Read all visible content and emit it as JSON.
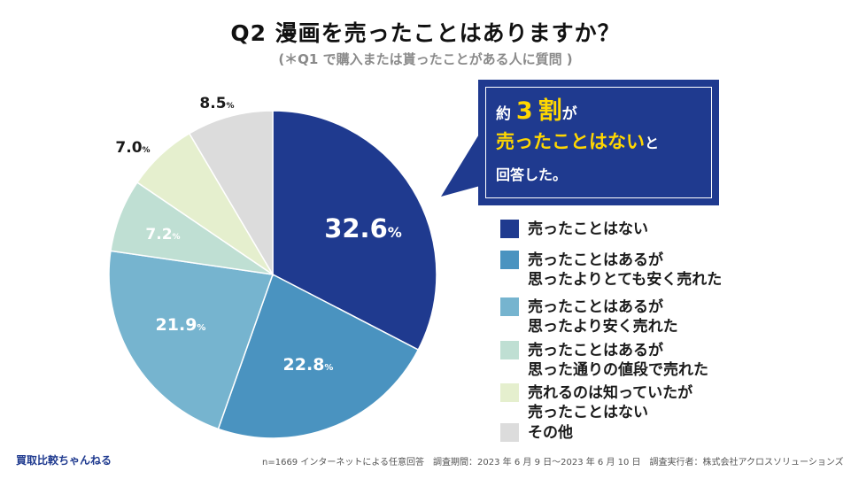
{
  "title": "Q2  漫画を売ったことはありますか？",
  "subtitle": "(＊Q1 で購入または貰ったことがある人に質問 )",
  "callout": {
    "line1_prefix": "約",
    "line1_number": "3",
    "line1_word": "割",
    "line1_suffix": "が",
    "line2_main": "売ったことはない",
    "line2_suffix": "と",
    "line3": "回答した。"
  },
  "chart_data": {
    "type": "pie",
    "title": "Q2  漫画を売ったことはありますか？",
    "unit": "%",
    "slices": [
      {
        "label": "売ったことはない",
        "legend_lines": [
          "売ったことはない"
        ],
        "value": 32.6,
        "value_label": "32.6",
        "color": "#1f3a8f",
        "label_color": "#ffffff"
      },
      {
        "label": "売ったことはあるが思ったよりとても安く売れた",
        "legend_lines": [
          "売ったことはあるが",
          "思ったよりとても安く売れた"
        ],
        "value": 22.8,
        "value_label": "22.8",
        "color": "#4a93c0",
        "label_color": "#ffffff"
      },
      {
        "label": "売ったことはあるが思ったより安く売れた",
        "legend_lines": [
          "売ったことはあるが",
          "思ったより安く売れた"
        ],
        "value": 21.9,
        "value_label": "21.9",
        "color": "#76b4cf",
        "label_color": "#ffffff"
      },
      {
        "label": "売ったことはあるが思った通りの値段で売れた",
        "legend_lines": [
          "売ったことはあるが",
          "思った通りの値段で売れた"
        ],
        "value": 7.2,
        "value_label": "7.2",
        "color": "#bfdfd3",
        "label_color": "#ffffff"
      },
      {
        "label": "売れるのは知っていたが売ったことはない",
        "legend_lines": [
          "売れるのは知っていたが",
          "売ったことはない"
        ],
        "value": 7.0,
        "value_label": "7.0",
        "color": "#e5efce",
        "label_color": "#1a1a1a"
      },
      {
        "label": "その他",
        "legend_lines": [
          "その他"
        ],
        "value": 8.5,
        "value_label": "8.5",
        "color": "#dcdcdc",
        "label_color": "#1a1a1a"
      }
    ]
  },
  "brand": "買取比較ちゃんねる",
  "footnote": "n=1669 インターネットによる任意回答　調査期間：2023 年 6 月 9 日〜2023 年 6 月 10 日　調査実行者：株式会社アクロスソリューションズ"
}
